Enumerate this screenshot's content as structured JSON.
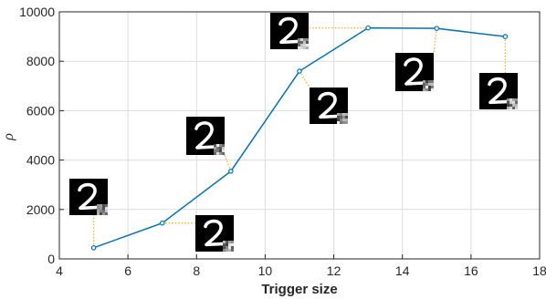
{
  "chart_data": {
    "type": "line",
    "title": "",
    "xlabel": "Trigger size",
    "ylabel": "ρ",
    "xlim": [
      4,
      18
    ],
    "ylim": [
      0,
      10000
    ],
    "x_ticks": [
      4,
      6,
      8,
      10,
      12,
      14,
      16,
      18
    ],
    "y_ticks": [
      0,
      2000,
      4000,
      6000,
      8000,
      10000
    ],
    "x_tick_labels": [
      "4",
      "6",
      "8",
      "10",
      "12",
      "14",
      "16",
      "18"
    ],
    "y_tick_labels": [
      "0",
      "2000",
      "4000",
      "6000",
      "8000",
      "10000"
    ],
    "grid": true,
    "series": [
      {
        "x": [
          5,
          7,
          9,
          11,
          13,
          15,
          17
        ],
        "y": [
          450,
          1450,
          3550,
          7600,
          9350,
          9330,
          9000
        ],
        "color": "#0072BD"
      }
    ],
    "annotations": {
      "description": "thumbnail images of handwritten digit 2 with a noise trigger patch in the lower-right corner, connected to each data point by dotted leader lines",
      "leader_color": "#EDB120",
      "thumb_digit": "2",
      "thumb_icon": "digit-2-with-trigger-patch"
    }
  }
}
